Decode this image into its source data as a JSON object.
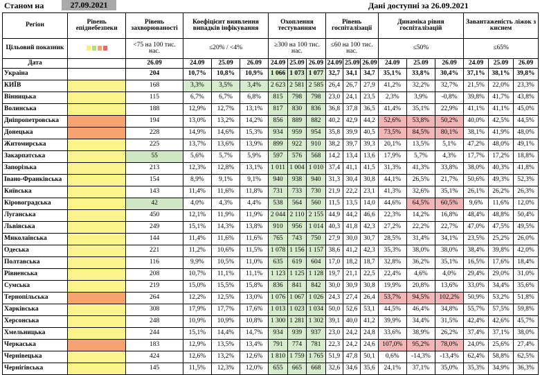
{
  "header": {
    "as_of_label": "Станом на",
    "as_of_date": "27.09.2021",
    "available_label": "Дані доступні за 26.09.2021"
  },
  "columns": {
    "region": "Регіон",
    "epi_level": "Рівень епіднебезпеки",
    "incidence": "Рівень захворюваності",
    "detection": "Коефіцієнт виявлення випадків інфікування",
    "testing": "Охоплення тестуванням",
    "hosp": "Рівень госпіталізації",
    "hosp_dyn": "Динаміка рівня госпіталізацій",
    "oxygen": "Завантаженість ліжок з киснем"
  },
  "targets": {
    "label": "Цільовий показник",
    "swatch_colors": [
      "#f7f26a",
      "#b9dc7b",
      "#f5a471",
      "#e86b6b"
    ],
    "incidence": "<75 на 100 тис. нас.",
    "detection": "≤20% / <4%",
    "testing": "≥300 на 100 тис. нас.",
    "hosp": "≤60 на 100 тис. нас.",
    "hosp_dyn": "≤50%",
    "oxygen": "≤65%"
  },
  "dates": {
    "label": "Дата",
    "incidence": "26.09",
    "list": [
      "24.09",
      "25.09",
      "26.09"
    ]
  },
  "rows": [
    {
      "region": "Україна",
      "level": "",
      "inc": "204",
      "det": [
        "10,7%",
        "10,8%",
        "10,9%"
      ],
      "test": [
        "1 066",
        "1 073",
        "1 077"
      ],
      "hosp": [
        "32,7",
        "34,1",
        "34,7"
      ],
      "dyn": [
        "35,1%",
        "33,8%",
        "30,4%"
      ],
      "oxy": [
        "37,1%",
        "38,1%",
        "39,8%"
      ]
    },
    {
      "region": "КИЇВ",
      "level": "y",
      "inc": "168",
      "det": [
        "3,3%",
        "3,5%",
        "3,4%"
      ],
      "test": [
        "2 623",
        "2 581",
        "2 585"
      ],
      "hosp": [
        "26,4",
        "26,7",
        "27,9"
      ],
      "dyn": [
        "41,2%",
        "32,2%",
        "32,7%"
      ],
      "oxy": [
        "21,5%",
        "22,0%",
        "23,3%"
      ]
    },
    {
      "region": "Вінницька",
      "level": "y",
      "inc": "115",
      "det": [
        "6,7%",
        "6,7%",
        "6,8%"
      ],
      "test": [
        "815",
        "798",
        "798"
      ],
      "hosp": [
        "23,0",
        "24,1",
        "23,5"
      ],
      "dyn": [
        "2,3%",
        "3,9%",
        "-0,8%"
      ],
      "oxy": [
        "39,8%",
        "41,7%",
        "43,8%"
      ]
    },
    {
      "region": "Волинська",
      "level": "y",
      "inc": "188",
      "det": [
        "12,9%",
        "12,7%",
        "13,1%"
      ],
      "test": [
        "817",
        "830",
        "836"
      ],
      "hosp": [
        "36,8",
        "37,8",
        "36,5"
      ],
      "dyn": [
        "41,4%",
        "35,1%",
        "22,9%"
      ],
      "oxy": [
        "41,1%",
        "41,1%",
        "45,0%"
      ]
    },
    {
      "region": "Дніпропетровська",
      "level": "o",
      "inc": "194",
      "det": [
        "13,0%",
        "13,2%",
        "14,2%"
      ],
      "test": [
        "856",
        "889",
        "882"
      ],
      "hosp": [
        "40,2",
        "42,9",
        "44,2"
      ],
      "dyn": [
        "52,6%",
        "53,8%",
        "50,2%"
      ],
      "oxy": [
        "40,0%",
        "42,5%",
        "44,5%"
      ]
    },
    {
      "region": "Донецька",
      "level": "o",
      "inc": "228",
      "det": [
        "14,9%",
        "14,6%",
        "15,3%"
      ],
      "test": [
        "934",
        "959",
        "954"
      ],
      "hosp": [
        "35,8",
        "39,9",
        "40,5"
      ],
      "dyn": [
        "73,5%",
        "84,5%",
        "80,1%"
      ],
      "oxy": [
        "38,1%",
        "41,9%",
        "48,0%"
      ]
    },
    {
      "region": "Житомирська",
      "level": "y",
      "inc": "225",
      "det": [
        "13,7%",
        "13,6%",
        "13,9%"
      ],
      "test": [
        "899",
        "922",
        "910"
      ],
      "hosp": [
        "38,2",
        "39,7",
        "39,3"
      ],
      "dyn": [
        "20,1%",
        "13,5%",
        "5,1%"
      ],
      "oxy": [
        "47,2%",
        "48,0%",
        "49,1%"
      ]
    },
    {
      "region": "Закарпатська",
      "level": "g",
      "inc": "55",
      "det": [
        "5,6%",
        "5,7%",
        "5,9%"
      ],
      "test": [
        "597",
        "576",
        "568"
      ],
      "hosp": [
        "14,2",
        "13,4",
        "13,6"
      ],
      "dyn": [
        "17,9%",
        "5,7%",
        "4,3%"
      ],
      "oxy": [
        "17,7%",
        "17,2%",
        "18,8%"
      ]
    },
    {
      "region": "Запорізька",
      "level": "y",
      "inc": "213",
      "det": [
        "12,3%",
        "12,8%",
        "13,1%"
      ],
      "test": [
        "1 011",
        "1 004",
        "1 010"
      ],
      "hosp": [
        "37,4",
        "41,1",
        "41,5"
      ],
      "dyn": [
        "31,3%",
        "41,3%",
        "33,8%"
      ],
      "oxy": [
        "38,0%",
        "40,3%",
        "41,8%"
      ]
    },
    {
      "region": "Івано-Франківська",
      "level": "y",
      "inc": "154",
      "det": [
        "8,9%",
        "9,1%",
        "9,1%"
      ],
      "test": [
        "940",
        "938",
        "940"
      ],
      "hosp": [
        "31,3",
        "30,4",
        "30,8"
      ],
      "dyn": [
        "44,1%",
        "26,5%",
        "21,7%"
      ],
      "oxy": [
        "50,6%",
        "49,3%",
        "52,3%"
      ]
    },
    {
      "region": "Київська",
      "level": "y",
      "inc": "143",
      "det": [
        "11,4%",
        "11,6%",
        "11,8%"
      ],
      "test": [
        "731",
        "733",
        "730"
      ],
      "hosp": [
        "21,9",
        "22,2",
        "23,1"
      ],
      "dyn": [
        "41,3%",
        "32,6%",
        "35,1%"
      ],
      "oxy": [
        "26,1%",
        "26,2%",
        "26,3%"
      ]
    },
    {
      "region": "Кіровоградська",
      "level": "g",
      "inc": "42",
      "det": [
        "4,0%",
        "4,3%",
        "4,4%"
      ],
      "test": [
        "538",
        "564",
        "560"
      ],
      "hosp": [
        "11,5",
        "13,5",
        "14,0"
      ],
      "dyn": [
        "44,6%",
        "64,5%",
        "60,5%"
      ],
      "oxy": [
        "9,6%",
        "11,6%",
        "12,0%"
      ]
    },
    {
      "region": "Луганська",
      "level": "y",
      "inc": "450",
      "det": [
        "12,1%",
        "11,9%",
        "11,9%"
      ],
      "test": [
        "2 044",
        "2 110",
        "2 155"
      ],
      "hosp": [
        "44,9",
        "44,2",
        "46,6"
      ],
      "dyn": [
        "22,3%",
        "14,2%",
        "16,8%"
      ],
      "oxy": [
        "48,4%",
        "48,8%",
        "50,4%"
      ]
    },
    {
      "region": "Львівська",
      "level": "y",
      "inc": "249",
      "det": [
        "15,1%",
        "14,3%",
        "13,8%"
      ],
      "test": [
        "910",
        "956",
        "1 014"
      ],
      "hosp": [
        "40,3",
        "41,8",
        "42,3"
      ],
      "dyn": [
        "27,2%",
        "22,2%",
        "22,7%"
      ],
      "oxy": [
        "47,0%",
        "47,5%",
        "49,5%"
      ]
    },
    {
      "region": "Миколаївська",
      "level": "y",
      "inc": "144",
      "det": [
        "11,4%",
        "11,6%",
        "11,6%"
      ],
      "test": [
        "765",
        "743",
        "750"
      ],
      "hosp": [
        "27,9",
        "30,0",
        "30,7"
      ],
      "dyn": [
        "28,5%",
        "31,4%",
        "34,1%"
      ],
      "oxy": [
        "23,5%",
        "25,2%",
        "26,0%"
      ]
    },
    {
      "region": "Одеська",
      "level": "y",
      "inc": "221",
      "det": [
        "11,2%",
        "10,6%",
        "11,5%"
      ],
      "test": [
        "1 078",
        "1 156",
        "1 157"
      ],
      "hosp": [
        "38,6",
        "41,2",
        "42,3"
      ],
      "dyn": [
        "35,3%",
        "38,0%",
        "38,0%"
      ],
      "oxy": [
        "38,4%",
        "39,8%",
        "42,0%"
      ]
    },
    {
      "region": "Полтавська",
      "level": "y",
      "inc": "116",
      "det": [
        "9,9%",
        "10,5%",
        "11,0%"
      ],
      "test": [
        "635",
        "619",
        "604"
      ],
      "hosp": [
        "17,0",
        "18,2",
        "18,7"
      ],
      "dyn": [
        "32,8%",
        "36,2%",
        "35,1%"
      ],
      "oxy": [
        "16,5%",
        "17,6%",
        "18,4%"
      ]
    },
    {
      "region": "Рівненська",
      "level": "y",
      "inc": "208",
      "det": [
        "10,7%",
        "11,1%",
        "11,1%"
      ],
      "test": [
        "1 123",
        "1 125",
        "1 128"
      ],
      "hosp": [
        "19,7",
        "21,1",
        "22,5"
      ],
      "dyn": [
        "22,4%",
        "4,6%",
        "4,0%"
      ],
      "oxy": [
        "29,4%",
        "29,0%",
        "31,0%"
      ]
    },
    {
      "region": "Сумська",
      "level": "y",
      "inc": "219",
      "det": [
        "15,0%",
        "15,5%",
        "15,8%"
      ],
      "test": [
        "836",
        "841",
        "842"
      ],
      "hosp": [
        "30,0",
        "30,9",
        "30,8"
      ],
      "dyn": [
        "19,9%",
        "20,8%",
        "13,6%"
      ],
      "oxy": [
        "33,0%",
        "34,4%",
        "35,6%"
      ]
    },
    {
      "region": "Тернопільська",
      "level": "o",
      "inc": "264",
      "det": [
        "12,2%",
        "12,5%",
        "13,0%"
      ],
      "test": [
        "1 076",
        "1 067",
        "1 026"
      ],
      "hosp": [
        "24,3",
        "27,4",
        "26,4"
      ],
      "dyn": [
        "53,7%",
        "94,5%",
        "102,2%"
      ],
      "oxy": [
        "50,9%",
        "53,2%",
        "51,8%"
      ]
    },
    {
      "region": "Харківська",
      "level": "y",
      "inc": "308",
      "det": [
        "17,9%",
        "17,7%",
        "17,6%"
      ],
      "test": [
        "1 013",
        "1 023",
        "1 034"
      ],
      "hosp": [
        "50,0",
        "52,6",
        "53,1"
      ],
      "dyn": [
        "44,5%",
        "46,4%",
        "34,8%"
      ],
      "oxy": [
        "55,7%",
        "57,5%",
        "59,8%"
      ]
    },
    {
      "region": "Херсонська",
      "level": "y",
      "inc": "248",
      "det": [
        "10,9%",
        "10,9%",
        "10,8%"
      ],
      "test": [
        "1 300",
        "1 281",
        "1 302"
      ],
      "hosp": [
        "39,1",
        "40,0",
        "41,2"
      ],
      "dyn": [
        "39,9%",
        "34,4%",
        "31,5%"
      ],
      "oxy": [
        "42,4%",
        "42,6%",
        "45,7%"
      ]
    },
    {
      "region": "Хмельницька",
      "level": "y",
      "inc": "244",
      "det": [
        "15,1%",
        "14,4%",
        "14,7%"
      ],
      "test": [
        "934",
        "939",
        "937"
      ],
      "hosp": [
        "23,0",
        "24,2",
        "24,8"
      ],
      "dyn": [
        "33,6%",
        "38,9%",
        "26,2%"
      ],
      "oxy": [
        "37,4%",
        "37,1%",
        "38,0%"
      ]
    },
    {
      "region": "Черкаська",
      "level": "o",
      "inc": "183",
      "det": [
        "12,9%",
        "13,5%",
        "13,4%"
      ],
      "test": [
        "791",
        "774",
        "781"
      ],
      "hosp": [
        "22,3",
        "24,2",
        "24,6"
      ],
      "dyn": [
        "107,0%",
        "95,2%",
        "78,0%"
      ],
      "oxy": [
        "24,0%",
        "25,6%",
        "27,4%"
      ]
    },
    {
      "region": "Чернівецька",
      "level": "y",
      "inc": "424",
      "det": [
        "12,6%",
        "13,2%",
        "12,6%"
      ],
      "test": [
        "1 810",
        "1 759",
        "1 765"
      ],
      "hosp": [
        "51,9",
        "47,8",
        "50,1"
      ],
      "dyn": [
        "0,6%",
        "-14,3%",
        "-13,4%"
      ],
      "oxy": [
        "62,4%",
        "58,8%",
        "62,5%"
      ]
    },
    {
      "region": "Чернігівська",
      "level": "y",
      "inc": "145",
      "det": [
        "11,5%",
        "12,3%",
        "12,0%"
      ],
      "test": [
        "655",
        "665",
        "668"
      ],
      "hosp": [
        "32,6",
        "34,6",
        "35,6"
      ],
      "dyn": [
        "24,1%",
        "37,1%",
        "35,0%"
      ],
      "oxy": [
        "35,3%",
        "34,9%",
        "36,3%"
      ]
    }
  ],
  "colors": {
    "green": "#d7ebcd",
    "red": "#f2b6b7",
    "yellow": "#fbf38c",
    "orange": "#f5a471"
  }
}
